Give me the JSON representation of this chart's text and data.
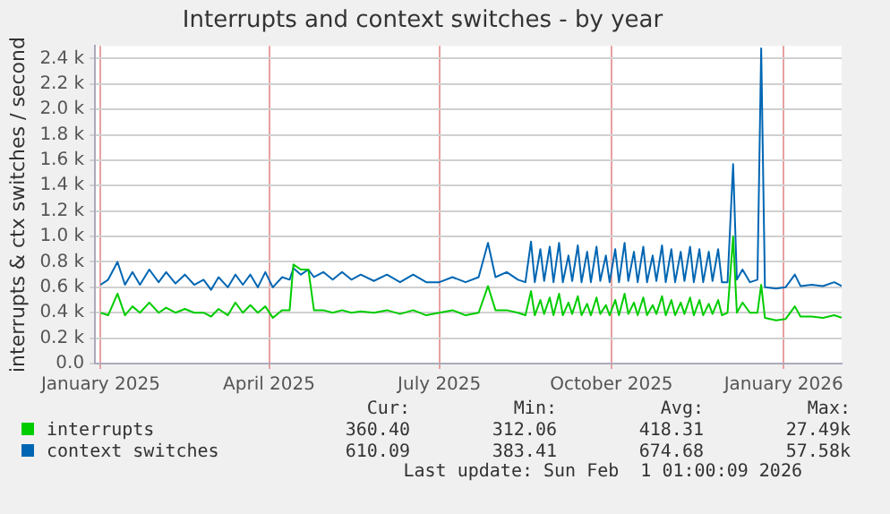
{
  "chart_data": {
    "type": "line",
    "title": "Interrupts and context switches - by year",
    "ylabel": "interrupts & ctx switches / second",
    "x": [
      "2025-01-01",
      "2025-01-05",
      "2025-01-10",
      "2025-01-14",
      "2025-01-18",
      "2025-01-22",
      "2025-01-27",
      "2025-02-01",
      "2025-02-05",
      "2025-02-10",
      "2025-02-15",
      "2025-02-20",
      "2025-02-25",
      "2025-03-01",
      "2025-03-05",
      "2025-03-10",
      "2025-03-14",
      "2025-03-18",
      "2025-03-22",
      "2025-03-26",
      "2025-03-30",
      "2025-04-03",
      "2025-04-08",
      "2025-04-12",
      "2025-04-14",
      "2025-04-18",
      "2025-04-22",
      "2025-04-25",
      "2025-04-30",
      "2025-05-05",
      "2025-05-10",
      "2025-05-15",
      "2025-05-20",
      "2025-05-27",
      "2025-06-03",
      "2025-06-10",
      "2025-06-17",
      "2025-06-24",
      "2025-07-01",
      "2025-07-08",
      "2025-07-15",
      "2025-07-22",
      "2025-07-27",
      "2025-07-31",
      "2025-08-06",
      "2025-08-12",
      "2025-08-16",
      "2025-08-19",
      "2025-08-21",
      "2025-08-24",
      "2025-08-26",
      "2025-08-29",
      "2025-08-31",
      "2025-09-03",
      "2025-09-05",
      "2025-09-08",
      "2025-09-10",
      "2025-09-13",
      "2025-09-15",
      "2025-09-18",
      "2025-09-20",
      "2025-09-23",
      "2025-09-25",
      "2025-09-28",
      "2025-09-30",
      "2025-10-03",
      "2025-10-05",
      "2025-10-08",
      "2025-10-10",
      "2025-10-13",
      "2025-10-15",
      "2025-10-18",
      "2025-10-20",
      "2025-10-23",
      "2025-10-25",
      "2025-10-28",
      "2025-10-30",
      "2025-11-02",
      "2025-11-04",
      "2025-11-07",
      "2025-11-09",
      "2025-11-12",
      "2025-11-14",
      "2025-11-17",
      "2025-11-19",
      "2025-11-22",
      "2025-11-24",
      "2025-11-27",
      "2025-11-29",
      "2025-12-02",
      "2025-12-05",
      "2025-12-07",
      "2025-12-10",
      "2025-12-14",
      "2025-12-18",
      "2025-12-20",
      "2025-12-22",
      "2025-12-28",
      "2026-01-02",
      "2026-01-07",
      "2026-01-10",
      "2026-01-16",
      "2026-01-22",
      "2026-01-28",
      "2026-02-01"
    ],
    "series": [
      {
        "name": "interrupts",
        "color": "#00cc00",
        "values": [
          400,
          380,
          550,
          380,
          450,
          400,
          480,
          400,
          440,
          400,
          430,
          400,
          400,
          370,
          430,
          380,
          480,
          400,
          460,
          400,
          450,
          360,
          420,
          420,
          780,
          740,
          740,
          420,
          420,
          400,
          420,
          400,
          410,
          400,
          420,
          390,
          420,
          380,
          400,
          420,
          380,
          400,
          610,
          420,
          420,
          400,
          380,
          570,
          380,
          500,
          390,
          520,
          380,
          550,
          380,
          480,
          390,
          530,
          380,
          470,
          380,
          520,
          390,
          460,
          380,
          500,
          380,
          550,
          390,
          480,
          380,
          520,
          380,
          460,
          390,
          530,
          380,
          500,
          380,
          480,
          390,
          520,
          380,
          500,
          380,
          470,
          390,
          500,
          380,
          400,
          1000,
          400,
          480,
          400,
          400,
          620,
          360,
          340,
          350,
          450,
          370,
          370,
          360,
          380,
          360
        ]
      },
      {
        "name": "context switches",
        "color": "#0066b3",
        "values": [
          620,
          660,
          800,
          620,
          720,
          620,
          740,
          640,
          720,
          630,
          700,
          620,
          660,
          580,
          680,
          600,
          700,
          620,
          700,
          600,
          720,
          600,
          680,
          660,
          750,
          700,
          740,
          680,
          720,
          660,
          720,
          660,
          700,
          650,
          700,
          640,
          700,
          640,
          640,
          680,
          640,
          680,
          950,
          680,
          720,
          660,
          640,
          960,
          640,
          900,
          650,
          920,
          640,
          950,
          640,
          850,
          650,
          930,
          640,
          880,
          640,
          920,
          650,
          850,
          640,
          900,
          640,
          950,
          650,
          880,
          640,
          920,
          640,
          850,
          650,
          930,
          640,
          900,
          640,
          880,
          650,
          920,
          640,
          900,
          640,
          880,
          650,
          900,
          640,
          640,
          1570,
          660,
          740,
          640,
          660,
          2480,
          600,
          590,
          600,
          700,
          610,
          620,
          610,
          640,
          610
        ]
      }
    ],
    "xlim": [
      "2024-12-29",
      "2026-02-01"
    ],
    "xticks": [
      {
        "value": "2025-01-01",
        "label": "January 2025"
      },
      {
        "value": "2025-04-01",
        "label": "April 2025"
      },
      {
        "value": "2025-07-01",
        "label": "July 2025"
      },
      {
        "value": "2025-10-01",
        "label": "October 2025"
      },
      {
        "value": "2026-01-01",
        "label": "January 2026"
      }
    ],
    "ylim": [
      0,
      2500
    ],
    "yticks": [
      {
        "value": 0,
        "label": "0.0"
      },
      {
        "value": 200,
        "label": "0.2 k"
      },
      {
        "value": 400,
        "label": "0.4 k"
      },
      {
        "value": 600,
        "label": "0.6 k"
      },
      {
        "value": 800,
        "label": "0.8 k"
      },
      {
        "value": 1000,
        "label": "1.0 k"
      },
      {
        "value": 1200,
        "label": "1.2 k"
      },
      {
        "value": 1400,
        "label": "1.4 k"
      },
      {
        "value": 1600,
        "label": "1.6 k"
      },
      {
        "value": 1800,
        "label": "1.8 k"
      },
      {
        "value": 2000,
        "label": "2.0 k"
      },
      {
        "value": 2200,
        "label": "2.2 k"
      },
      {
        "value": 2400,
        "label": "2.4 k"
      }
    ],
    "grid": true,
    "legend": "bottom",
    "marker": "none",
    "line_style": "solid",
    "annotations": [
      "Cur:",
      "Min:",
      "Avg:",
      "Max:",
      "360.40",
      "312.06",
      "418.31",
      "27.49k",
      "610.09",
      "383.41",
      "674.68",
      "57.58k",
      "Last update: Sun Feb  1 01:00:09 2026"
    ]
  }
}
